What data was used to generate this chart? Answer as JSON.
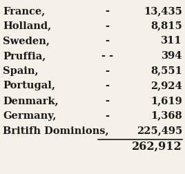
{
  "rows": [
    {
      "country": "France,",
      "dashes": "-",
      "value": "13,435"
    },
    {
      "country": "Holland,",
      "dashes": "-",
      "value": "8,815"
    },
    {
      "country": "Sweden,",
      "dashes": "-",
      "value": "311"
    },
    {
      "country": "Pruffia,",
      "dashes": "- -",
      "value": "394"
    },
    {
      "country": "Spain,",
      "dashes": "-",
      "value": "8,551"
    },
    {
      "country": "Portugal,",
      "dashes": "-",
      "value": "2,924"
    },
    {
      "country": "Denmark,",
      "dashes": "-",
      "value": "1,619"
    },
    {
      "country": "Germany,",
      "dashes": "-",
      "value": "1,368"
    },
    {
      "country": "Britifh Dominions,",
      "dashes": "",
      "value": "225,495"
    }
  ],
  "total": "262,912",
  "bg_color": "#f5f0e8",
  "text_color": "#1a1a1a",
  "font_size": 10.5,
  "total_font_size": 11.5
}
